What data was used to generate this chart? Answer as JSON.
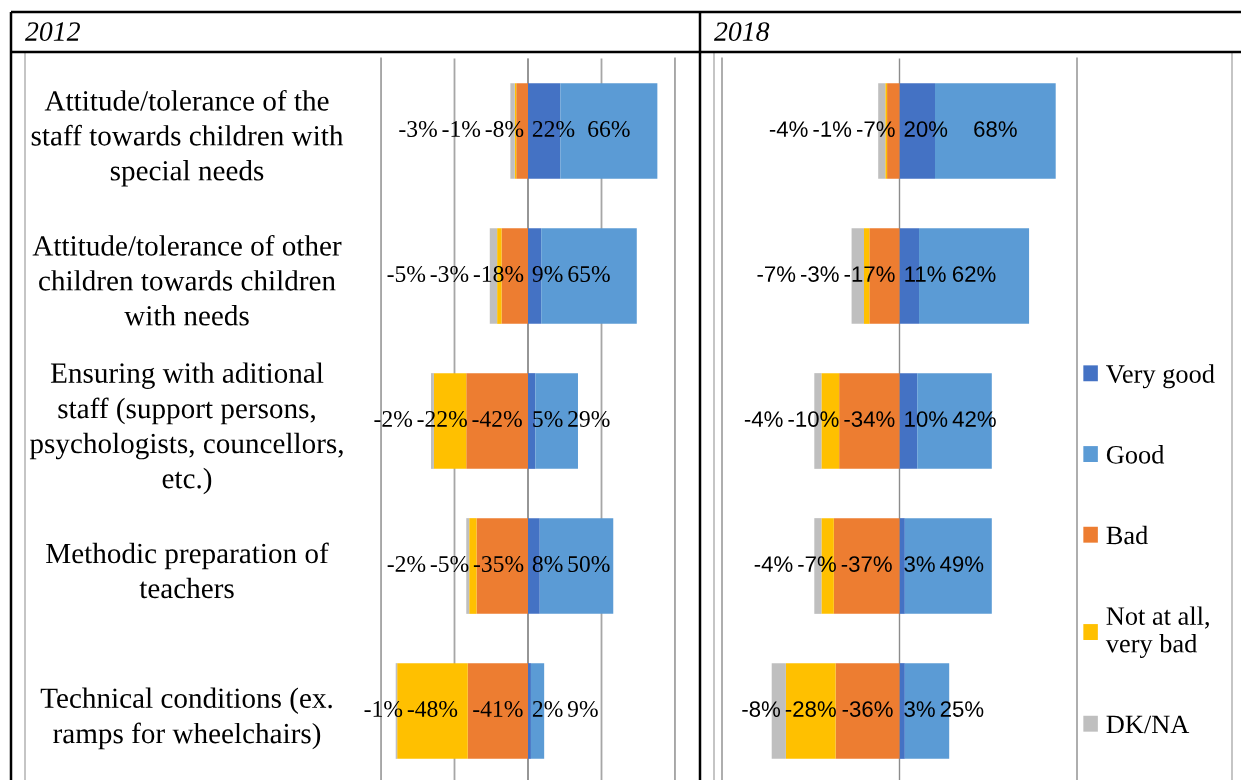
{
  "chart_data": [
    {
      "type": "bar",
      "orientation": "horizontal",
      "stacked": true,
      "title": "2012",
      "categories": [
        "Attitude/tolerance of the\nstaff towards children with\nspecial needs",
        "Attitude/tolerance of other\nchildren towards children\nwith needs",
        "Ensuring with aditional\nstaff (support persons,\npsychologists, councellors,\netc.)",
        "Methodic preparation of\nteachers",
        "Technical conditions (ex.\nramps for wheelchairs)"
      ],
      "series": [
        {
          "color": "#4472c4",
          "values": [
            22,
            9,
            5,
            8,
            2
          ],
          "value_labels": [
            "22%",
            "9%",
            "5%",
            "8%",
            "2%"
          ]
        },
        {
          "color": "#5b9bd5",
          "values": [
            66,
            65,
            29,
            50,
            9
          ],
          "value_labels": [
            "66%",
            "65%",
            "29%",
            "50%",
            "9%"
          ]
        },
        {
          "color": "#ed7d31",
          "values": [
            -8,
            -18,
            -42,
            -35,
            -41
          ],
          "value_labels": [
            "-8%",
            "-18%",
            "-42%",
            "-35%",
            "-41%"
          ]
        },
        {
          "color": "#ffc000",
          "values": [
            -1,
            -3,
            -22,
            -5,
            -48
          ],
          "value_labels": [
            "-1%",
            "-3%",
            "-22%",
            "-5%",
            "-48%"
          ]
        },
        {
          "color": "#bfbfbf",
          "values": [
            -3,
            -5,
            -2,
            -2,
            -1
          ],
          "value_labels": [
            "-3%",
            "-5%",
            "-2%",
            "-2%",
            "-1%"
          ]
        }
      ],
      "xlim": [
        -100,
        100
      ],
      "xticks": [
        {
          "value": -100,
          "label": null
        },
        {
          "value": -50,
          "label": null
        },
        {
          "value": 0,
          "label": null
        },
        {
          "value": 50,
          "label": null
        },
        {
          "value": 100,
          "label": null
        }
      ],
      "grid": "x"
    },
    {
      "type": "bar",
      "orientation": "horizontal",
      "stacked": true,
      "title": "2018",
      "categories": [
        null,
        null,
        null,
        null,
        null
      ],
      "series": [
        {
          "name": "Very good",
          "color": "#4472c4",
          "values": [
            20,
            11,
            10,
            3,
            3
          ],
          "value_labels": [
            "20%",
            "11%",
            "10%",
            "3%",
            "3%"
          ]
        },
        {
          "name": "Good",
          "color": "#5b9bd5",
          "values": [
            68,
            62,
            42,
            49,
            25
          ],
          "value_labels": [
            "68%",
            "62%",
            "42%",
            "49%",
            "25%"
          ]
        },
        {
          "name": "Bad",
          "color": "#ed7d31",
          "values": [
            -7,
            -17,
            -34,
            -37,
            -36
          ],
          "value_labels": [
            "-7%",
            "-17%",
            "-34%",
            "-37%",
            "-36%"
          ]
        },
        {
          "name": "Not at all,\nvery bad",
          "color": "#ffc000",
          "values": [
            -1,
            -3,
            -10,
            -7,
            -28
          ],
          "value_labels": [
            "-1%",
            "-3%",
            "-10%",
            "-7%",
            "-28%"
          ]
        },
        {
          "name": "DK/NA",
          "color": "#bfbfbf",
          "values": [
            -4,
            -7,
            -4,
            -4,
            -8
          ],
          "value_labels": [
            "-4%",
            "-7%",
            "-4%",
            "-4%",
            "-8%"
          ]
        }
      ],
      "xlim": [
        -100,
        100
      ],
      "legend": "right"
    }
  ]
}
